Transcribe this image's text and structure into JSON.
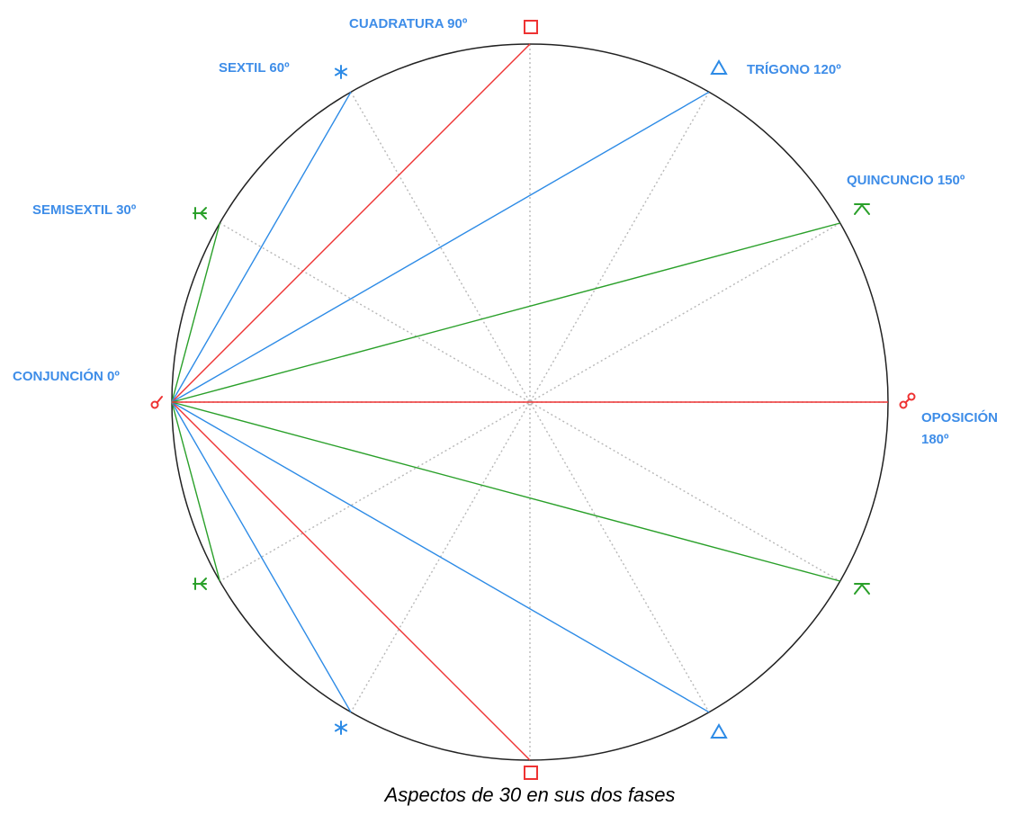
{
  "colors": {
    "circle": "#222222",
    "guide": "#b8b8b8",
    "label": "#3e8de8",
    "conjunction": "#ee3333",
    "semisextile": "#2aa02a",
    "sextile": "#2d8be6",
    "square": "#ee3333",
    "trine": "#2d8be6",
    "quincunx": "#2aa02a",
    "opposition": "#ee3333"
  },
  "aspects": [
    {
      "key": "conjunction",
      "label": "CONJUNCIÓN 0º",
      "degrees": 0,
      "icon": "conjunction-icon",
      "lines": false
    },
    {
      "key": "semisextile",
      "label": "SEMISEXTIL 30º",
      "degrees": 30,
      "icon": "semisextile-icon",
      "lines": true
    },
    {
      "key": "sextile",
      "label": "SEXTIL 60º",
      "degrees": 60,
      "icon": "sextile-icon",
      "lines": true
    },
    {
      "key": "square",
      "label": "CUADRATURA 90º",
      "degrees": 90,
      "icon": "square-icon",
      "lines": true
    },
    {
      "key": "trine",
      "label": "TRÍGONO 120º",
      "degrees": 120,
      "icon": "trine-icon",
      "lines": true
    },
    {
      "key": "quincunx",
      "label": "QUINCUNCIO 150º",
      "degrees": 150,
      "icon": "quincunx-icon",
      "lines": true
    },
    {
      "key": "opposition",
      "label_lines": [
        "OPOSICIÓN",
        "180º"
      ],
      "degrees": 180,
      "icon": "opposition-icon",
      "lines": true
    }
  ],
  "caption": "Aspectos de 30 en sus dos fases"
}
